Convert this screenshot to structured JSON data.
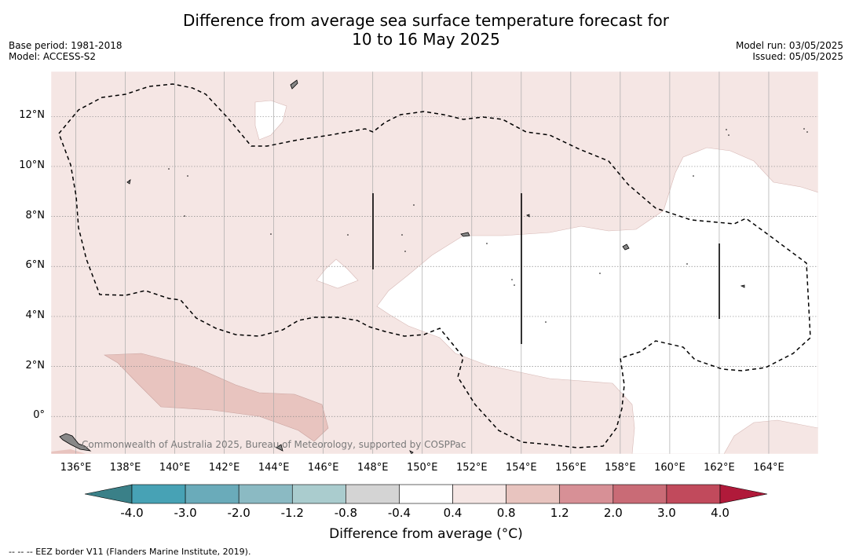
{
  "title": {
    "line1": "Difference from average sea surface temperature forecast for",
    "line2": "10 to 16 May 2025"
  },
  "meta_left": {
    "base_period": "Base period: 1981-2018",
    "model": "Model: ACCESS-S2"
  },
  "meta_right": {
    "model_run": "Model run: 03/05/2025",
    "issued": "Issued: 05/05/2025"
  },
  "map": {
    "longitude_labels": [
      "136°E",
      "138°E",
      "140°E",
      "142°E",
      "144°E",
      "146°E",
      "148°E",
      "150°E",
      "152°E",
      "154°E",
      "156°E",
      "158°E",
      "160°E",
      "162°E",
      "164°E"
    ],
    "latitude_labels": [
      "12°N",
      "10°N",
      "8°N",
      "6°N",
      "4°N",
      "2°N",
      "0°"
    ],
    "lon_range": [
      135,
      166
    ],
    "lat_range": [
      -1.5,
      13.8
    ],
    "credit": "Commonwealth of Australia 2025, Bureau of Meteorology, supported by COSPPac"
  },
  "colorbar": {
    "tick_labels": [
      "-4.0",
      "-3.0",
      "-2.0",
      "-1.2",
      "-0.8",
      "-0.4",
      "0.4",
      "0.8",
      "1.2",
      "2.0",
      "3.0",
      "4.0"
    ],
    "colors": [
      "#47a2b5",
      "#6aabba",
      "#8bbac3",
      "#aaccce",
      "#d4d4d4",
      "#ffffff",
      "#f5e6e4",
      "#e8c4bf",
      "#d79096",
      "#c96b76",
      "#c14a5c"
    ],
    "under_color": "#3a8088",
    "over_color": "#b01a3a",
    "label": "Difference from average (°C)"
  },
  "footnote": "-- -- -- EEZ border V11 (Flanders Marine Institute, 2019)."
}
